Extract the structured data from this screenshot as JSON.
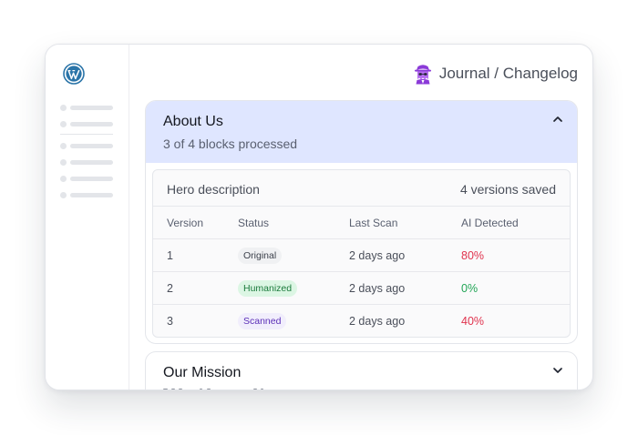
{
  "header": {
    "title": "Journal / Changelog",
    "icon": "ghost-detective-icon",
    "accent_color": "#8b3ad8"
  },
  "sidebar": {
    "logo": "wordpress-icon",
    "logo_color": "#2a74a8",
    "skeleton_items": 6
  },
  "sections": [
    {
      "title": "About Us",
      "subtitle": "3 of 4 blocks processed",
      "expanded": true,
      "block": {
        "title": "Hero description",
        "versions_label": "4 versions saved",
        "columns": [
          "Version",
          "Status",
          "Last Scan",
          "AI Detected"
        ],
        "rows": [
          {
            "version": "1",
            "status": "Original",
            "last_scan": "2 days ago",
            "ai_detected": "80%"
          },
          {
            "version": "2",
            "status": "Humanized",
            "last_scan": "2 days ago",
            "ai_detected": "0%"
          },
          {
            "version": "3",
            "status": "Scanned",
            "last_scan": "2 days ago",
            "ai_detected": "40%"
          }
        ]
      }
    },
    {
      "title": "Our Mission",
      "expanded": false
    }
  ],
  "colors": {
    "section_header_bg": "#dfe6ff",
    "danger": "#e0334e",
    "success": "#22a556"
  }
}
